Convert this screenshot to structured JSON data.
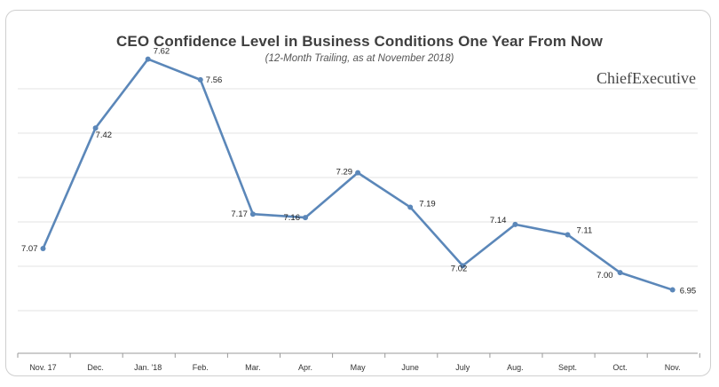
{
  "chart_data": {
    "type": "line",
    "title": "CEO Confidence Level in Business Conditions One Year From Now",
    "subtitle": "(12-Month Trailing, as at November 2018)",
    "brand": "ChiefExecutive",
    "categories": [
      "Nov. 17",
      "Dec.",
      "Jan. '18",
      "Feb.",
      "Mar.",
      "Apr.",
      "May",
      "June",
      "July",
      "Aug.",
      "Sept.",
      "Oct.",
      "Nov."
    ],
    "series": [
      {
        "values": [
          7.07,
          7.42,
          7.62,
          7.56,
          7.17,
          7.16,
          7.29,
          7.19,
          7.02,
          7.14,
          7.11,
          7.0,
          6.95
        ],
        "labels": [
          "7.07",
          "7.42",
          "7.62",
          "7.56",
          "7.17",
          "7.16",
          "7.29",
          "7.19",
          "7.02",
          "7.14",
          "7.11",
          "7.00",
          "6.95"
        ]
      }
    ],
    "line_color": "#5b87b9",
    "grid": true,
    "legend": "none"
  }
}
